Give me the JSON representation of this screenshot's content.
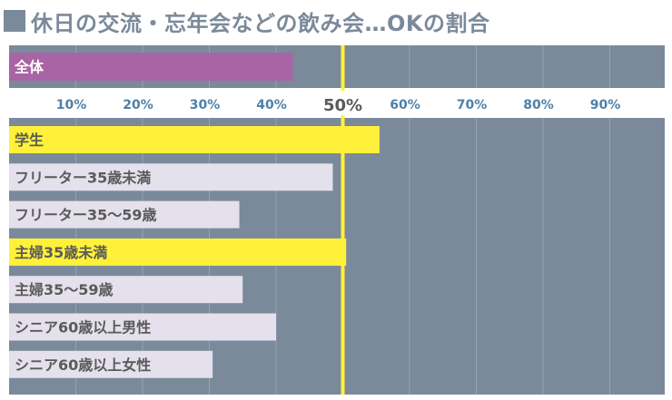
{
  "chart_data": {
    "type": "bar",
    "orientation": "horizontal",
    "title": "休日の交流・忘年会などの飲み会…OKの割合",
    "categories": [
      "全体",
      "学生",
      "フリーター35歳未満",
      "フリーター35〜59歳",
      "主婦35歳未満",
      "主婦35〜59歳",
      "シニア60歳以上男性",
      "シニア60歳以上女性"
    ],
    "values": [
      42.5,
      55.5,
      48.5,
      34.5,
      50.5,
      35,
      40,
      30.5
    ],
    "bar_colors": [
      "#a864a4",
      "#fff13a",
      "#e4e0ec",
      "#e4e0ec",
      "#fff13a",
      "#e4e0ec",
      "#e4e0ec",
      "#e4e0ec"
    ],
    "label_colors": [
      "#ffffff",
      "#5a5a5a",
      "#5a5a5a",
      "#5a5a5a",
      "#5a5a5a",
      "#5a5a5a",
      "#5a5a5a",
      "#5a5a5a"
    ],
    "tick_labels": [
      "10%",
      "20%",
      "30%",
      "40%",
      "50%",
      "60%",
      "70%",
      "80%",
      "90%"
    ],
    "ticks": [
      10,
      20,
      30,
      40,
      50,
      60,
      70,
      80,
      90
    ],
    "xlim": [
      0,
      100
    ],
    "reference_line": 50,
    "reference_color": "#fff13a",
    "background_color": "#7a8a9a",
    "grid_color": "#93a3b3",
    "grid": true
  }
}
